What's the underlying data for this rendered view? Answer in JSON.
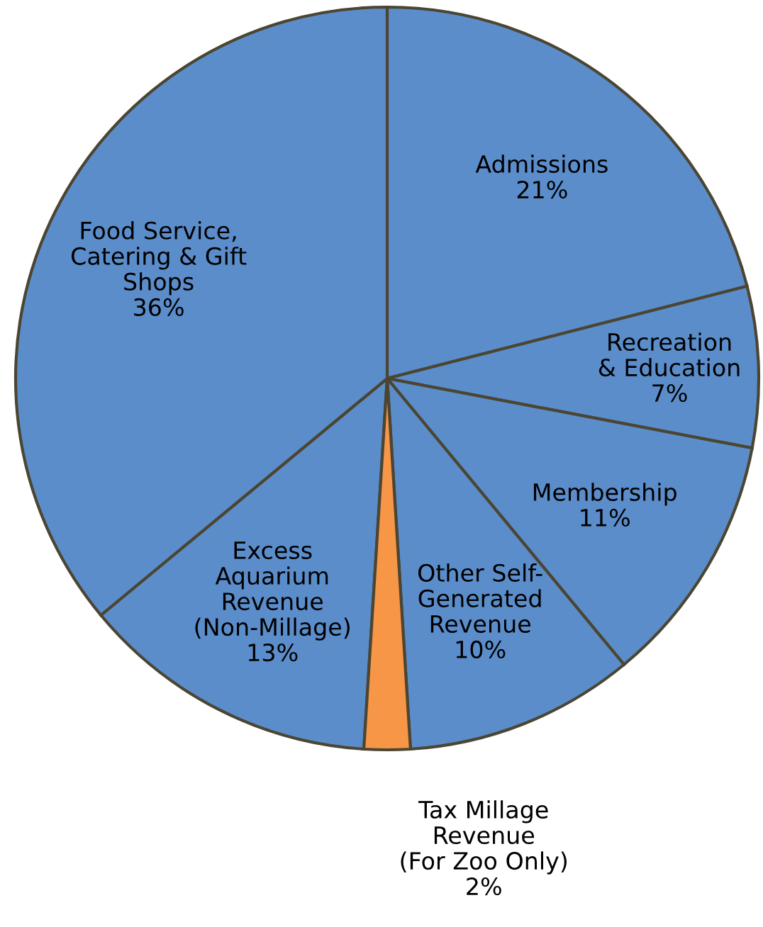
{
  "chart_data": {
    "type": "pie",
    "categories": [
      "Admissions",
      "Recreation\n& Education",
      "Membership",
      "Other Self-\nGenerated\nRevenue",
      "Tax Millage\nRevenue\n(For Zoo Only)",
      "Excess\nAquarium\nRevenue\n(Non-Millage)",
      "Food Service,\nCatering & Gift\nShops"
    ],
    "values": [
      21,
      7,
      11,
      10,
      2,
      13,
      36
    ],
    "value_labels": [
      "21%",
      "7%",
      "11%",
      "10%",
      "2%",
      "13%",
      "36%"
    ],
    "colors": [
      "#5b8dcb",
      "#5b8dcb",
      "#5b8dcb",
      "#5b8dcb",
      "#f79646",
      "#5b8dcb",
      "#5b8dcb"
    ],
    "data_labels": true,
    "legend": false
  }
}
